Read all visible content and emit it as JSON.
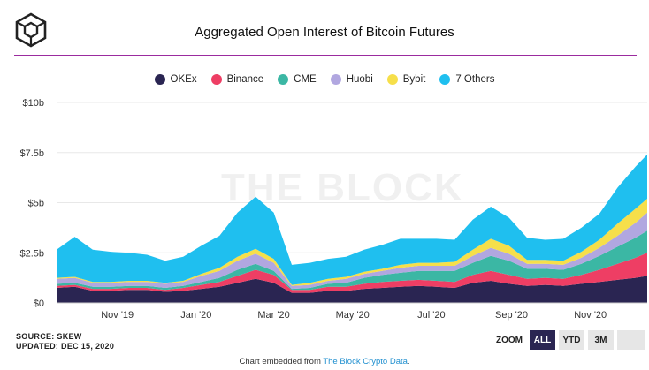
{
  "header": {
    "title": "Aggregated Open Interest of Bitcoin Futures",
    "watermark": "THE BLOCK"
  },
  "footer": {
    "source": "SOURCE: SKEW",
    "updated": "UPDATED: DEC 15, 2020",
    "embedded_prefix": "Chart embedded from ",
    "embedded_link": "The Block Crypto Data",
    "embedded_suffix": "."
  },
  "zoom": {
    "label": "ZOOM",
    "buttons": [
      "ALL",
      "YTD",
      "3M"
    ],
    "active": "ALL"
  },
  "colors": {
    "OKEx": "#2a2552",
    "Binance": "#ee3e64",
    "CME": "#3bb7a4",
    "Huobi": "#b1a7e0",
    "Bybit": "#f6df4a",
    "7 Others": "#1fbfef",
    "title_rule": "#9b2b9f",
    "link": "#1f8fcf"
  },
  "chart_data": {
    "type": "area",
    "stacked": true,
    "yunit": "$",
    "yticks": [
      "$0",
      "$2.5b",
      "$5b",
      "$7.5b",
      "$10b"
    ],
    "ylim": [
      0,
      10
    ],
    "xticks": [
      {
        "label": "Nov '19",
        "date": "2019-11-01"
      },
      {
        "label": "Jan '20",
        "date": "2020-01-01"
      },
      {
        "label": "Mar '20",
        "date": "2020-03-01"
      },
      {
        "label": "May '20",
        "date": "2020-05-01"
      },
      {
        "label": "Jul '20",
        "date": "2020-07-01"
      },
      {
        "label": "Sep '20",
        "date": "2020-09-01"
      },
      {
        "label": "Nov '20",
        "date": "2020-11-01"
      }
    ],
    "x": [
      "2019-09-15",
      "2019-09-29",
      "2019-10-13",
      "2019-10-27",
      "2019-11-10",
      "2019-11-24",
      "2019-12-08",
      "2019-12-22",
      "2020-01-05",
      "2020-01-19",
      "2020-02-02",
      "2020-02-16",
      "2020-03-01",
      "2020-03-15",
      "2020-03-29",
      "2020-04-12",
      "2020-04-26",
      "2020-05-10",
      "2020-05-24",
      "2020-06-07",
      "2020-06-21",
      "2020-07-05",
      "2020-07-19",
      "2020-08-02",
      "2020-08-16",
      "2020-08-30",
      "2020-09-13",
      "2020-09-27",
      "2020-10-11",
      "2020-10-25",
      "2020-11-08",
      "2020-11-22",
      "2020-12-06",
      "2020-12-15"
    ],
    "series": [
      {
        "name": "OKEx",
        "values": [
          0.75,
          0.8,
          0.6,
          0.6,
          0.65,
          0.65,
          0.55,
          0.6,
          0.7,
          0.8,
          1.0,
          1.2,
          1.0,
          0.5,
          0.5,
          0.6,
          0.6,
          0.7,
          0.75,
          0.8,
          0.85,
          0.8,
          0.75,
          1.0,
          1.1,
          0.95,
          0.85,
          0.9,
          0.85,
          0.95,
          1.05,
          1.15,
          1.25,
          1.35
        ]
      },
      {
        "name": "Binance",
        "values": [
          0.1,
          0.1,
          0.1,
          0.1,
          0.1,
          0.1,
          0.1,
          0.15,
          0.2,
          0.25,
          0.35,
          0.45,
          0.4,
          0.15,
          0.15,
          0.2,
          0.2,
          0.25,
          0.3,
          0.3,
          0.3,
          0.3,
          0.3,
          0.4,
          0.5,
          0.45,
          0.35,
          0.35,
          0.35,
          0.45,
          0.6,
          0.8,
          1.0,
          1.15
        ]
      },
      {
        "name": "CME",
        "values": [
          0.1,
          0.1,
          0.1,
          0.1,
          0.1,
          0.1,
          0.1,
          0.1,
          0.15,
          0.2,
          0.3,
          0.3,
          0.2,
          0.05,
          0.1,
          0.15,
          0.2,
          0.3,
          0.35,
          0.4,
          0.45,
          0.5,
          0.55,
          0.6,
          0.75,
          0.7,
          0.5,
          0.45,
          0.45,
          0.55,
          0.7,
          0.85,
          1.0,
          1.1
        ]
      },
      {
        "name": "Huobi",
        "values": [
          0.25,
          0.25,
          0.2,
          0.2,
          0.2,
          0.2,
          0.2,
          0.2,
          0.3,
          0.35,
          0.45,
          0.5,
          0.4,
          0.15,
          0.15,
          0.15,
          0.2,
          0.2,
          0.2,
          0.25,
          0.25,
          0.25,
          0.25,
          0.35,
          0.4,
          0.35,
          0.25,
          0.25,
          0.25,
          0.3,
          0.4,
          0.55,
          0.75,
          0.9
        ]
      },
      {
        "name": "Bybit",
        "values": [
          0.05,
          0.05,
          0.05,
          0.05,
          0.05,
          0.05,
          0.05,
          0.05,
          0.1,
          0.15,
          0.2,
          0.25,
          0.2,
          0.05,
          0.1,
          0.1,
          0.1,
          0.1,
          0.1,
          0.15,
          0.15,
          0.15,
          0.2,
          0.3,
          0.45,
          0.4,
          0.2,
          0.2,
          0.2,
          0.3,
          0.4,
          0.6,
          0.7,
          0.7
        ]
      },
      {
        "name": "7 Others",
        "values": [
          1.4,
          2.0,
          1.6,
          1.5,
          1.4,
          1.3,
          1.1,
          1.2,
          1.4,
          1.6,
          2.2,
          2.6,
          2.3,
          1.0,
          1.0,
          1.0,
          1.0,
          1.1,
          1.2,
          1.3,
          1.2,
          1.2,
          1.1,
          1.5,
          1.6,
          1.4,
          1.1,
          1.0,
          1.1,
          1.2,
          1.3,
          1.8,
          2.1,
          2.2
        ]
      }
    ]
  }
}
